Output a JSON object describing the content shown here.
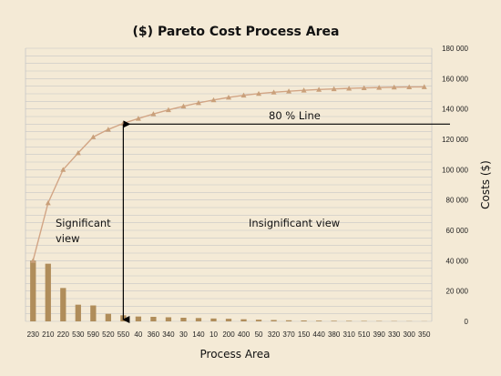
{
  "colors": {
    "background": "#f4ead6",
    "bar": "#b08d5a",
    "line": "#d2a585",
    "marker": "#c9a07a",
    "grid": "#c6c6c6",
    "annotation": "#000000"
  },
  "chart_data": {
    "type": "bar",
    "title": "($) Pareto Cost Process Area",
    "xlabel": "Process Area",
    "ylabel": "Costs ($)",
    "ylim": [
      0,
      180000
    ],
    "y_ticks": [
      0,
      20000,
      40000,
      60000,
      80000,
      100000,
      120000,
      140000,
      160000,
      180000
    ],
    "y_tick_labels": [
      "0",
      "20 000",
      "40 000",
      "60 000",
      "80 000",
      "100 000",
      "120 000",
      "140 000",
      "160 000",
      "180 000"
    ],
    "y_axis_side": "right",
    "grid": true,
    "categories": [
      "230",
      "210",
      "220",
      "530",
      "590",
      "520",
      "550",
      "40",
      "360",
      "340",
      "30",
      "140",
      "10",
      "200",
      "400",
      "50",
      "320",
      "370",
      "150",
      "440",
      "380",
      "310",
      "510",
      "390",
      "330",
      "300",
      "350"
    ],
    "series": [
      {
        "type": "bar",
        "values": [
          40000,
          38000,
          22000,
          11000,
          10500,
          5000,
          4000,
          3200,
          3000,
          2700,
          2400,
          2200,
          1900,
          1700,
          1400,
          1100,
          900,
          700,
          600,
          500,
          400,
          350,
          300,
          250,
          200,
          150,
          100
        ]
      },
      {
        "type": "line",
        "marker": "triangle",
        "values": [
          40000,
          78000,
          100000,
          111000,
          121500,
          126500,
          130500,
          133700,
          136700,
          139400,
          141800,
          144000,
          145900,
          147600,
          149000,
          150100,
          151000,
          151700,
          152300,
          152800,
          153200,
          153550,
          153850,
          154100,
          154300,
          154450,
          154550
        ]
      }
    ],
    "annotations": {
      "threshold_label": "80 % Line",
      "threshold_value": 130000,
      "cutoff_category": "550",
      "left_label_line1": "Significant",
      "left_label_line2": "view",
      "right_label": "Insignificant view"
    }
  }
}
